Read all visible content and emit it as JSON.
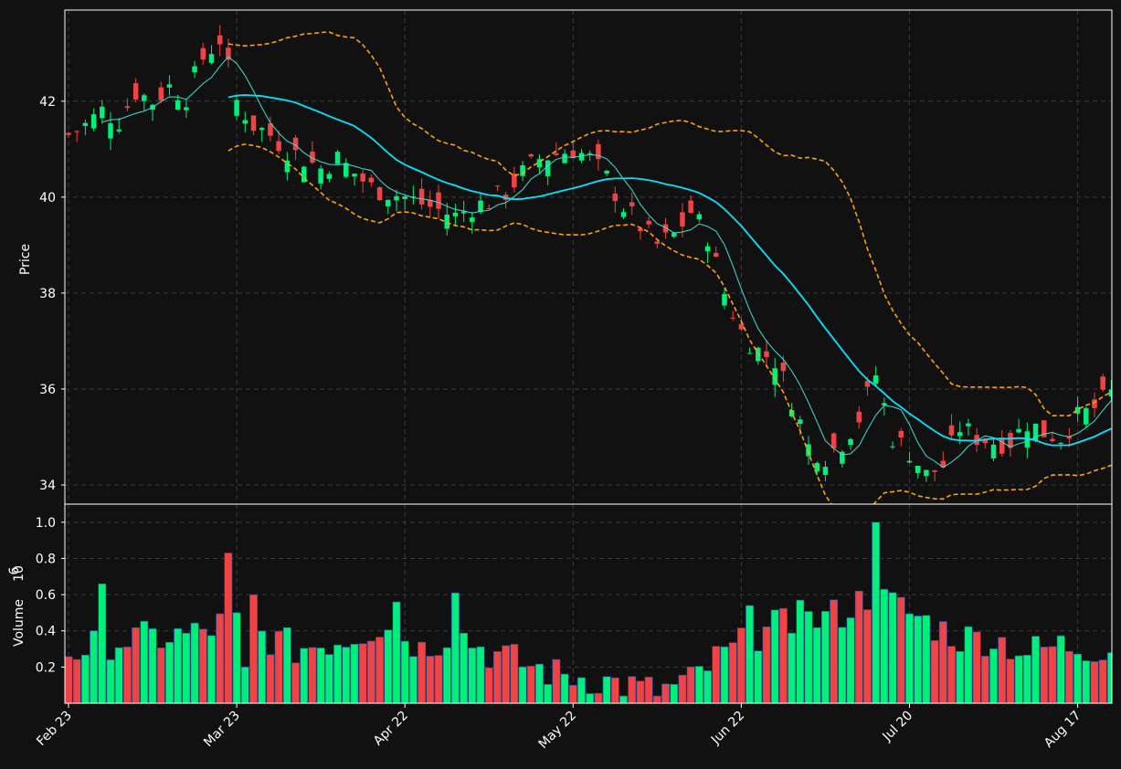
{
  "colors": {
    "background": "#111111",
    "up": "#00ee7a",
    "down": "#f04444",
    "grid": "#3a3a3a",
    "sma_fast": "#40e0d0",
    "sma_slow": "#00e5ff",
    "bollinger": "#ffa500",
    "axis": "#ffffff"
  },
  "chart_data": {
    "type": "candlestick",
    "price_axis": {
      "ylabel": "Price",
      "ticks": [
        34,
        36,
        38,
        40,
        42
      ],
      "ylim": [
        33.6,
        43.9
      ],
      "grid": true
    },
    "volume_axis": {
      "ylabel": "Volume",
      "exponent": "6",
      "ticks": [
        0.2,
        0.4,
        0.6,
        0.8,
        1.0
      ],
      "ylim": [
        0,
        1.1
      ],
      "grid": true
    },
    "x_tick_labels": [
      {
        "index": 0,
        "label": "Feb 23"
      },
      {
        "index": 20,
        "label": "Mar 23"
      },
      {
        "index": 40,
        "label": "Apr 22"
      },
      {
        "index": 60,
        "label": "May 22"
      },
      {
        "index": 80,
        "label": "Jun 22"
      },
      {
        "index": 100,
        "label": "Jul 20"
      },
      {
        "index": 120,
        "label": "Aug 17"
      }
    ],
    "start_date": "2023-02-23",
    "close_path": [
      [
        0,
        41.3
      ],
      [
        2,
        41.5
      ],
      [
        4,
        41.8
      ],
      [
        6,
        41.6
      ],
      [
        8,
        42.2
      ],
      [
        10,
        42.0
      ],
      [
        12,
        42.3
      ],
      [
        14,
        42.1
      ],
      [
        16,
        42.9
      ],
      [
        18,
        43.3
      ],
      [
        20,
        42.0
      ],
      [
        22,
        41.5
      ],
      [
        24,
        41.3
      ],
      [
        26,
        41.0
      ],
      [
        28,
        40.8
      ],
      [
        30,
        40.6
      ],
      [
        32,
        40.8
      ],
      [
        34,
        40.5
      ],
      [
        36,
        40.2
      ],
      [
        38,
        40.1
      ],
      [
        40,
        40.0
      ],
      [
        43,
        39.8
      ],
      [
        46,
        39.6
      ],
      [
        48,
        39.8
      ],
      [
        50,
        39.9
      ],
      [
        52,
        40.1
      ],
      [
        54,
        40.5
      ],
      [
        56,
        40.8
      ],
      [
        58,
        40.9
      ],
      [
        60,
        41.0
      ],
      [
        62,
        40.8
      ],
      [
        64,
        40.4
      ],
      [
        66,
        39.8
      ],
      [
        68,
        39.4
      ],
      [
        70,
        39.0
      ],
      [
        72,
        39.2
      ],
      [
        74,
        39.7
      ],
      [
        76,
        39.2
      ],
      [
        78,
        38.0
      ],
      [
        80,
        37.2
      ],
      [
        82,
        36.8
      ],
      [
        84,
        36.6
      ],
      [
        86,
        35.8
      ],
      [
        88,
        34.8
      ],
      [
        90,
        34.6
      ],
      [
        92,
        34.9
      ],
      [
        94,
        35.4
      ],
      [
        96,
        36.3
      ],
      [
        98,
        35.0
      ],
      [
        100,
        34.7
      ],
      [
        102,
        34.2
      ],
      [
        104,
        34.4
      ],
      [
        106,
        35.2
      ],
      [
        108,
        35.0
      ],
      [
        110,
        34.9
      ],
      [
        112,
        34.9
      ],
      [
        114,
        35.3
      ],
      [
        116,
        35.1
      ],
      [
        118,
        35.0
      ],
      [
        120,
        35.4
      ],
      [
        122,
        35.6
      ],
      [
        124,
        35.9
      ]
    ],
    "volume_path": [
      [
        0,
        0.28
      ],
      [
        5,
        0.34
      ],
      [
        10,
        0.36
      ],
      [
        15,
        0.38
      ],
      [
        19,
        0.45
      ],
      [
        22,
        0.4
      ],
      [
        27,
        0.3
      ],
      [
        33,
        0.36
      ],
      [
        38,
        0.45
      ],
      [
        42,
        0.3
      ],
      [
        46,
        0.4
      ],
      [
        50,
        0.28
      ],
      [
        54,
        0.22
      ],
      [
        58,
        0.16
      ],
      [
        62,
        0.14
      ],
      [
        66,
        0.1
      ],
      [
        70,
        0.06
      ],
      [
        74,
        0.12
      ],
      [
        77,
        0.24
      ],
      [
        80,
        0.32
      ],
      [
        84,
        0.42
      ],
      [
        88,
        0.45
      ],
      [
        92,
        0.5
      ],
      [
        96,
        0.62
      ],
      [
        98,
        0.55
      ],
      [
        102,
        0.45
      ],
      [
        106,
        0.36
      ],
      [
        110,
        0.36
      ],
      [
        114,
        0.28
      ],
      [
        118,
        0.32
      ],
      [
        124,
        0.3
      ]
    ],
    "volume_spikes": [
      {
        "index": 4,
        "value": 0.66
      },
      {
        "index": 19,
        "value": 0.83
      },
      {
        "index": 21,
        "value": 0.2
      },
      {
        "index": 22,
        "value": 0.6
      },
      {
        "index": 39,
        "value": 0.56
      },
      {
        "index": 46,
        "value": 0.61
      },
      {
        "index": 96,
        "value": 1.0
      },
      {
        "index": 97,
        "value": 0.63
      },
      {
        "index": 81,
        "value": 0.54
      },
      {
        "index": 87,
        "value": 0.57
      }
    ],
    "num_candles": 125,
    "sma_fast_period": 5,
    "sma_slow_period": 20,
    "bollinger_period": 20,
    "bollinger_std": 2
  }
}
